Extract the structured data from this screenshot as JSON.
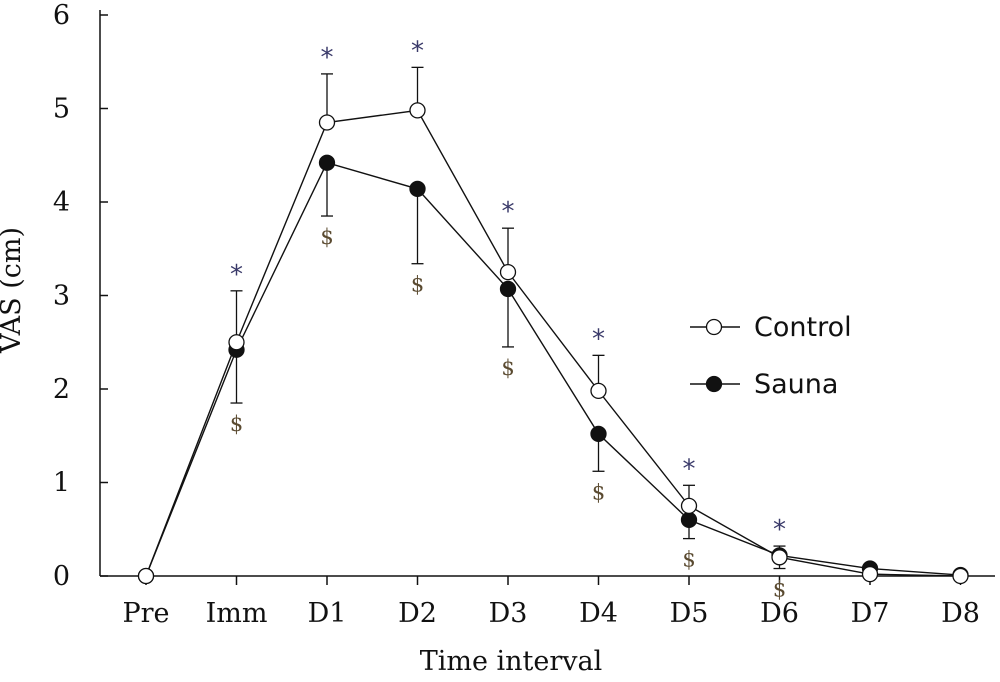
{
  "chart_data": {
    "type": "line",
    "xlabel": "Time interval",
    "ylabel": "VAS (cm)",
    "categories": [
      "Pre",
      "Imm",
      "D1",
      "D2",
      "D3",
      "D4",
      "D5",
      "D6",
      "D7",
      "D8"
    ],
    "ylim": [
      0,
      6
    ],
    "yticks": [
      0,
      1,
      2,
      3,
      4,
      5,
      6
    ],
    "grid": false,
    "legend": "right",
    "series": [
      {
        "name": "Control",
        "marker": "open-circle",
        "values": [
          0,
          2.5,
          4.85,
          4.98,
          3.25,
          1.98,
          0.75,
          0.2,
          0.02,
          0
        ],
        "error_upper": [
          null,
          0.55,
          0.52,
          0.46,
          0.47,
          0.38,
          0.22,
          0.12,
          null,
          null
        ]
      },
      {
        "name": "Sauna",
        "marker": "filled-circle",
        "values": [
          0,
          2.42,
          4.42,
          4.14,
          3.07,
          1.52,
          0.6,
          0.22,
          0.08,
          0.01
        ],
        "error_lower": [
          null,
          0.57,
          0.57,
          0.8,
          0.62,
          0.4,
          0.2,
          0.14,
          null,
          null
        ]
      }
    ],
    "annotations": {
      "asterisk": {
        "text": "*",
        "color": "#3a3a6a",
        "categories": [
          "Imm",
          "D1",
          "D2",
          "D3",
          "D4",
          "D5",
          "D6"
        ]
      },
      "dollar": {
        "text": "$",
        "color": "#5a4a30",
        "categories": [
          "Imm",
          "D1",
          "D2",
          "D3",
          "D4",
          "D5",
          "D6"
        ]
      }
    },
    "colors": {
      "line": "#111111",
      "marker_fill_open": "#ffffff",
      "marker_fill_closed": "#111111"
    }
  }
}
